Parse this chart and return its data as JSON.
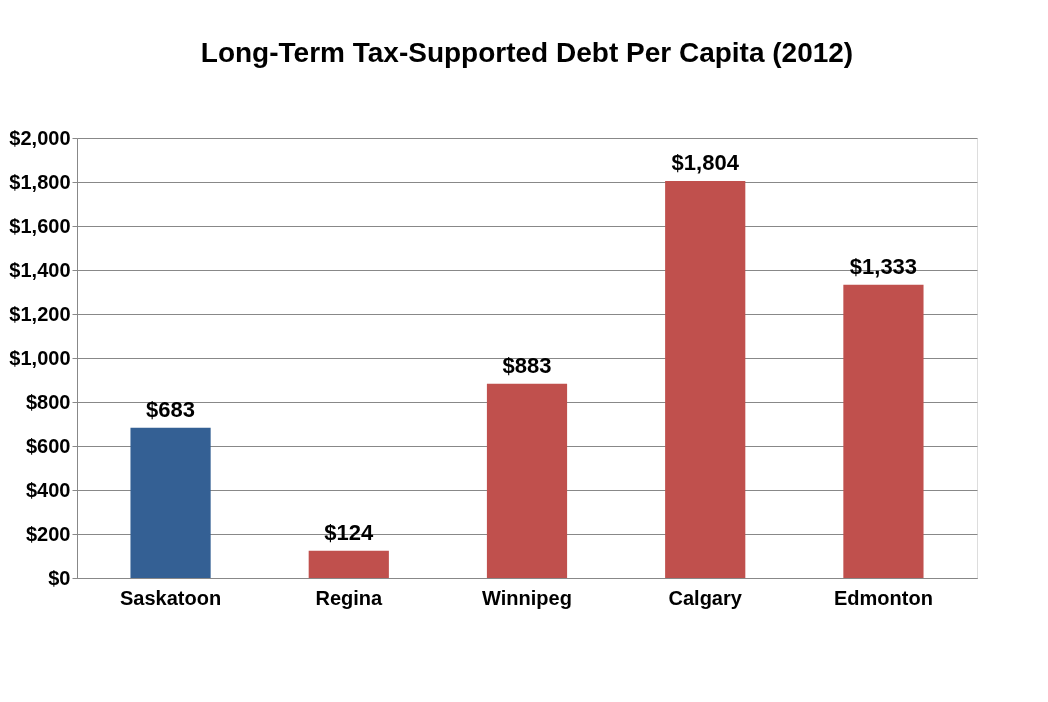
{
  "chart_data": {
    "type": "bar",
    "title": "Long-Term Tax-Supported Debt Per Capita (2012)",
    "categories": [
      "Saskatoon",
      "Regina",
      "Winnipeg",
      "Calgary",
      "Edmonton"
    ],
    "values": [
      683,
      124,
      883,
      1804,
      1333
    ],
    "colors": [
      "#346094",
      "#c0504d",
      "#c0504d",
      "#c0504d",
      "#c0504d"
    ],
    "value_labels": [
      "$683",
      "$124",
      "$883",
      "$1,804",
      "$1,333"
    ],
    "ylim": [
      0,
      2000
    ],
    "yticks": [
      {
        "value": 0,
        "label": "$0"
      },
      {
        "value": 200,
        "label": "$200"
      },
      {
        "value": 400,
        "label": "$400"
      },
      {
        "value": 600,
        "label": "$600"
      },
      {
        "value": 800,
        "label": "$800"
      },
      {
        "value": 1000,
        "label": "$1,000"
      },
      {
        "value": 1200,
        "label": "$1,200"
      },
      {
        "value": 1400,
        "label": "$1,400"
      },
      {
        "value": 1600,
        "label": "$1,600"
      },
      {
        "value": 1800,
        "label": "$1,800"
      },
      {
        "value": 2000,
        "label": "$2,000"
      }
    ],
    "grid": "y",
    "legend": false
  }
}
